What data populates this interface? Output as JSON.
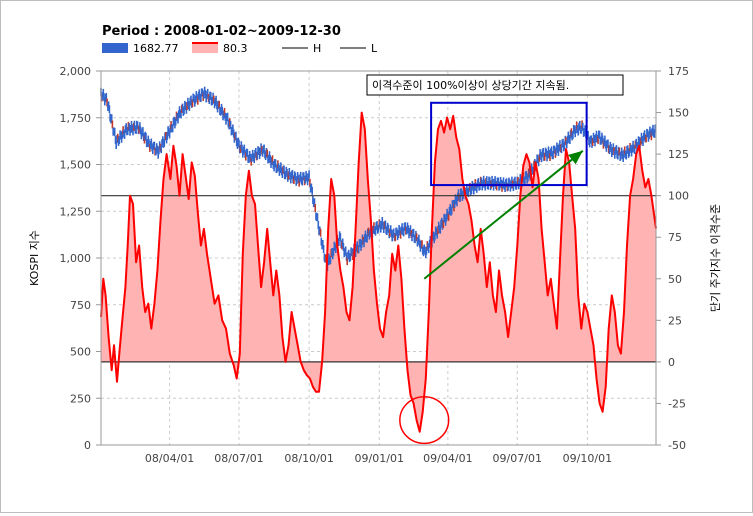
{
  "chart_data": {
    "type": "line",
    "title": "Period : 2008-01-02~2009-12-30",
    "legend": [
      {
        "name": "1682.77",
        "color": "#3366cc",
        "kind": "bar"
      },
      {
        "name": "80.3",
        "color": "#ff0000",
        "kind": "area"
      },
      {
        "name": "H",
        "color": "#555555",
        "kind": "line"
      },
      {
        "name": "L",
        "color": "#555555",
        "kind": "line"
      }
    ],
    "legend_placement": "top-left",
    "ylabel_left": "KOSPI 지수",
    "ylabel_right": "단기 주가지수 이격수준",
    "y_left": {
      "min": 0,
      "max": 2000,
      "ticks": [
        0,
        250,
        500,
        750,
        1000,
        1250,
        1500,
        1750,
        2000
      ],
      "tick_labels": [
        "0",
        "250",
        "500",
        "750",
        "1,000",
        "1,250",
        "1,500",
        "1,750",
        "2,000"
      ]
    },
    "y_right": {
      "min": -50,
      "max": 175,
      "ticks": [
        -50,
        -25,
        0,
        25,
        50,
        75,
        100,
        125,
        150,
        175
      ],
      "tick_labels": [
        "-50",
        "-25",
        "0",
        "25",
        "50",
        "75",
        "100",
        "125",
        "150",
        "175"
      ]
    },
    "x_range": [
      "2008-01-02",
      "2009-12-30"
    ],
    "x_ticks": [
      {
        "date": "2008-04-01",
        "label": "08/04/01"
      },
      {
        "date": "2008-07-01",
        "label": "08/07/01"
      },
      {
        "date": "2008-10-01",
        "label": "08/10/01"
      },
      {
        "date": "2009-01-01",
        "label": "09/01/01"
      },
      {
        "date": "2009-04-01",
        "label": "09/04/01"
      },
      {
        "date": "2009-07-01",
        "label": "09/07/01"
      },
      {
        "date": "2009-10-01",
        "label": "09/10/01"
      }
    ],
    "reference_lines": [
      {
        "name": "H",
        "value_right": 100
      },
      {
        "name": "L",
        "value_right": 0
      }
    ],
    "kospi": {
      "name": "1682.77",
      "color": "#3366cc",
      "points": [
        [
          "2008-01-02",
          1880
        ],
        [
          "2008-01-10",
          1840
        ],
        [
          "2008-01-22",
          1620
        ],
        [
          "2008-02-05",
          1690
        ],
        [
          "2008-02-20",
          1700
        ],
        [
          "2008-03-05",
          1610
        ],
        [
          "2008-03-17",
          1570
        ],
        [
          "2008-04-01",
          1680
        ],
        [
          "2008-04-15",
          1780
        ],
        [
          "2008-05-01",
          1840
        ],
        [
          "2008-05-16",
          1880
        ],
        [
          "2008-05-30",
          1840
        ],
        [
          "2008-06-16",
          1740
        ],
        [
          "2008-07-01",
          1600
        ],
        [
          "2008-07-16",
          1530
        ],
        [
          "2008-08-01",
          1580
        ],
        [
          "2008-08-16",
          1500
        ],
        [
          "2008-09-01",
          1450
        ],
        [
          "2008-09-16",
          1420
        ],
        [
          "2008-10-01",
          1430
        ],
        [
          "2008-10-10",
          1240
        ],
        [
          "2008-10-24",
          960
        ],
        [
          "2008-11-10",
          1110
        ],
        [
          "2008-11-20",
          1000
        ],
        [
          "2008-12-05",
          1060
        ],
        [
          "2008-12-20",
          1140
        ],
        [
          "2009-01-05",
          1180
        ],
        [
          "2009-01-20",
          1120
        ],
        [
          "2009-02-05",
          1160
        ],
        [
          "2009-02-20",
          1100
        ],
        [
          "2009-03-02",
          1030
        ],
        [
          "2009-03-16",
          1130
        ],
        [
          "2009-04-01",
          1230
        ],
        [
          "2009-04-15",
          1330
        ],
        [
          "2009-05-01",
          1370
        ],
        [
          "2009-05-15",
          1400
        ],
        [
          "2009-06-01",
          1400
        ],
        [
          "2009-06-16",
          1390
        ],
        [
          "2009-07-01",
          1400
        ],
        [
          "2009-07-16",
          1440
        ],
        [
          "2009-08-01",
          1550
        ],
        [
          "2009-08-16",
          1560
        ],
        [
          "2009-09-01",
          1610
        ],
        [
          "2009-09-16",
          1690
        ],
        [
          "2009-09-24",
          1700
        ],
        [
          "2009-10-05",
          1620
        ],
        [
          "2009-10-16",
          1650
        ],
        [
          "2009-11-01",
          1580
        ],
        [
          "2009-11-16",
          1550
        ],
        [
          "2009-12-01",
          1590
        ],
        [
          "2009-12-16",
          1650
        ],
        [
          "2009-12-30",
          1682.77
        ]
      ]
    },
    "disparity": {
      "name": "80.3",
      "color": "#ff0000",
      "fill": "#ffb3b3",
      "points": [
        [
          "2008-01-02",
          27
        ],
        [
          "2008-01-05",
          50
        ],
        [
          "2008-01-08",
          40
        ],
        [
          "2008-01-12",
          15
        ],
        [
          "2008-01-16",
          -5
        ],
        [
          "2008-01-19",
          10
        ],
        [
          "2008-01-23",
          -12
        ],
        [
          "2008-01-26",
          5
        ],
        [
          "2008-01-30",
          25
        ],
        [
          "2008-02-03",
          45
        ],
        [
          "2008-02-06",
          70
        ],
        [
          "2008-02-09",
          100
        ],
        [
          "2008-02-13",
          95
        ],
        [
          "2008-02-17",
          60
        ],
        [
          "2008-02-21",
          70
        ],
        [
          "2008-02-25",
          45
        ],
        [
          "2008-02-29",
          30
        ],
        [
          "2008-03-04",
          35
        ],
        [
          "2008-03-08",
          20
        ],
        [
          "2008-03-12",
          35
        ],
        [
          "2008-03-16",
          55
        ],
        [
          "2008-03-20",
          85
        ],
        [
          "2008-03-24",
          110
        ],
        [
          "2008-03-28",
          125
        ],
        [
          "2008-04-02",
          110
        ],
        [
          "2008-04-06",
          130
        ],
        [
          "2008-04-10",
          118
        ],
        [
          "2008-04-14",
          100
        ],
        [
          "2008-04-18",
          125
        ],
        [
          "2008-04-22",
          112
        ],
        [
          "2008-04-26",
          98
        ],
        [
          "2008-04-30",
          120
        ],
        [
          "2008-05-04",
          112
        ],
        [
          "2008-05-08",
          90
        ],
        [
          "2008-05-12",
          70
        ],
        [
          "2008-05-16",
          80
        ],
        [
          "2008-05-20",
          65
        ],
        [
          "2008-05-25",
          50
        ],
        [
          "2008-05-30",
          35
        ],
        [
          "2008-06-04",
          40
        ],
        [
          "2008-06-09",
          25
        ],
        [
          "2008-06-14",
          20
        ],
        [
          "2008-06-19",
          5
        ],
        [
          "2008-06-24",
          -2
        ],
        [
          "2008-06-28",
          -10
        ],
        [
          "2008-07-02",
          5
        ],
        [
          "2008-07-06",
          65
        ],
        [
          "2008-07-10",
          100
        ],
        [
          "2008-07-14",
          115
        ],
        [
          "2008-07-18",
          100
        ],
        [
          "2008-07-22",
          95
        ],
        [
          "2008-07-26",
          70
        ],
        [
          "2008-07-30",
          45
        ],
        [
          "2008-08-03",
          60
        ],
        [
          "2008-08-07",
          80
        ],
        [
          "2008-08-11",
          60
        ],
        [
          "2008-08-15",
          40
        ],
        [
          "2008-08-19",
          55
        ],
        [
          "2008-08-23",
          40
        ],
        [
          "2008-08-27",
          15
        ],
        [
          "2008-08-31",
          0
        ],
        [
          "2008-09-04",
          10
        ],
        [
          "2008-09-08",
          30
        ],
        [
          "2008-09-12",
          20
        ],
        [
          "2008-09-16",
          10
        ],
        [
          "2008-09-20",
          0
        ],
        [
          "2008-09-24",
          -5
        ],
        [
          "2008-09-28",
          -8
        ],
        [
          "2008-10-02",
          -10
        ],
        [
          "2008-10-06",
          -15
        ],
        [
          "2008-10-10",
          -18
        ],
        [
          "2008-10-14",
          -18
        ],
        [
          "2008-10-18",
          0
        ],
        [
          "2008-10-22",
          30
        ],
        [
          "2008-10-26",
          80
        ],
        [
          "2008-10-30",
          110
        ],
        [
          "2008-11-03",
          100
        ],
        [
          "2008-11-07",
          70
        ],
        [
          "2008-11-11",
          55
        ],
        [
          "2008-11-15",
          45
        ],
        [
          "2008-11-19",
          30
        ],
        [
          "2008-11-23",
          25
        ],
        [
          "2008-11-27",
          45
        ],
        [
          "2008-12-01",
          80
        ],
        [
          "2008-12-05",
          120
        ],
        [
          "2008-12-09",
          150
        ],
        [
          "2008-12-13",
          140
        ],
        [
          "2008-12-17",
          110
        ],
        [
          "2008-12-21",
          85
        ],
        [
          "2008-12-25",
          55
        ],
        [
          "2008-12-29",
          35
        ],
        [
          "2009-01-02",
          20
        ],
        [
          "2009-01-06",
          15
        ],
        [
          "2009-01-10",
          30
        ],
        [
          "2009-01-14",
          40
        ],
        [
          "2009-01-18",
          65
        ],
        [
          "2009-01-22",
          55
        ],
        [
          "2009-01-26",
          70
        ],
        [
          "2009-01-30",
          50
        ],
        [
          "2009-02-03",
          20
        ],
        [
          "2009-02-07",
          -5
        ],
        [
          "2009-02-11",
          -20
        ],
        [
          "2009-02-15",
          -25
        ],
        [
          "2009-02-19",
          -35
        ],
        [
          "2009-02-23",
          -42
        ],
        [
          "2009-02-27",
          -30
        ],
        [
          "2009-03-03",
          -10
        ],
        [
          "2009-03-07",
          30
        ],
        [
          "2009-03-11",
          80
        ],
        [
          "2009-03-15",
          120
        ],
        [
          "2009-03-19",
          140
        ],
        [
          "2009-03-23",
          145
        ],
        [
          "2009-03-27",
          138
        ],
        [
          "2009-03-31",
          147
        ],
        [
          "2009-04-04",
          140
        ],
        [
          "2009-04-08",
          148
        ],
        [
          "2009-04-12",
          135
        ],
        [
          "2009-04-16",
          128
        ],
        [
          "2009-04-20",
          110
        ],
        [
          "2009-04-24",
          100
        ],
        [
          "2009-04-28",
          95
        ],
        [
          "2009-05-02",
          85
        ],
        [
          "2009-05-06",
          70
        ],
        [
          "2009-05-10",
          60
        ],
        [
          "2009-05-14",
          80
        ],
        [
          "2009-05-18",
          65
        ],
        [
          "2009-05-22",
          45
        ],
        [
          "2009-05-26",
          60
        ],
        [
          "2009-05-30",
          40
        ],
        [
          "2009-06-03",
          30
        ],
        [
          "2009-06-07",
          55
        ],
        [
          "2009-06-11",
          40
        ],
        [
          "2009-06-15",
          30
        ],
        [
          "2009-06-19",
          15
        ],
        [
          "2009-06-23",
          30
        ],
        [
          "2009-06-27",
          45
        ],
        [
          "2009-07-01",
          70
        ],
        [
          "2009-07-05",
          100
        ],
        [
          "2009-07-09",
          118
        ],
        [
          "2009-07-13",
          125
        ],
        [
          "2009-07-17",
          120
        ],
        [
          "2009-07-21",
          105
        ],
        [
          "2009-07-25",
          120
        ],
        [
          "2009-07-29",
          110
        ],
        [
          "2009-08-02",
          80
        ],
        [
          "2009-08-06",
          60
        ],
        [
          "2009-08-10",
          40
        ],
        [
          "2009-08-14",
          50
        ],
        [
          "2009-08-18",
          35
        ],
        [
          "2009-08-22",
          20
        ],
        [
          "2009-08-26",
          60
        ],
        [
          "2009-08-30",
          100
        ],
        [
          "2009-09-03",
          128
        ],
        [
          "2009-09-07",
          120
        ],
        [
          "2009-09-11",
          100
        ],
        [
          "2009-09-15",
          80
        ],
        [
          "2009-09-19",
          40
        ],
        [
          "2009-09-23",
          20
        ],
        [
          "2009-09-27",
          35
        ],
        [
          "2009-10-01",
          30
        ],
        [
          "2009-10-05",
          20
        ],
        [
          "2009-10-09",
          10
        ],
        [
          "2009-10-13",
          -10
        ],
        [
          "2009-10-17",
          -25
        ],
        [
          "2009-10-21",
          -30
        ],
        [
          "2009-10-25",
          -15
        ],
        [
          "2009-10-29",
          20
        ],
        [
          "2009-11-02",
          40
        ],
        [
          "2009-11-06",
          30
        ],
        [
          "2009-11-10",
          10
        ],
        [
          "2009-11-14",
          5
        ],
        [
          "2009-11-18",
          30
        ],
        [
          "2009-11-22",
          70
        ],
        [
          "2009-11-26",
          100
        ],
        [
          "2009-11-30",
          110
        ],
        [
          "2009-12-04",
          125
        ],
        [
          "2009-12-08",
          130
        ],
        [
          "2009-12-12",
          115
        ],
        [
          "2009-12-16",
          105
        ],
        [
          "2009-12-20",
          110
        ],
        [
          "2009-12-24",
          100
        ],
        [
          "2009-12-30",
          80.3
        ]
      ]
    },
    "annotations": [
      {
        "kind": "text_box",
        "text": "이격수준이 100%이상이 상당기간 지속됨."
      },
      {
        "kind": "rectangle",
        "color": "#0000cc",
        "x0": "2009-03-10",
        "x1": "2009-09-30",
        "y0_left": 1390,
        "y1_left": 1830
      },
      {
        "kind": "ellipse",
        "color": "#ff0000",
        "center": "2009-03-01",
        "center_right": -35,
        "rx_days": 32,
        "ry_right": 14
      },
      {
        "kind": "arrow",
        "color": "#008000",
        "from": "2009-03-01",
        "from_right": 50,
        "to": "2009-09-25",
        "to_right": 127
      }
    ]
  }
}
